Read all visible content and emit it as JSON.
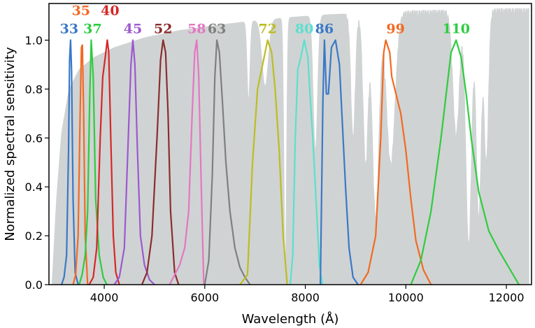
{
  "chart_data": {
    "type": "line",
    "title": "",
    "xlabel": "Wavelength  (Å)",
    "ylabel": "Normalized spectral sensitivity",
    "xlim": [
      2900,
      12500
    ],
    "ylim": [
      0,
      1.15
    ],
    "x_ticks": [
      4000,
      6000,
      8000,
      10000,
      12000
    ],
    "y_ticks": [
      0.0,
      0.2,
      0.4,
      0.6,
      0.8,
      1.0
    ],
    "x_tick_labels": [
      "4000",
      "6000",
      "8000",
      "10000",
      "12000"
    ],
    "y_tick_labels": [
      "0.0",
      "0.2",
      "0.4",
      "0.6",
      "0.8",
      "1.0"
    ],
    "grid": false,
    "atmosphere": {
      "color": "#d0d3d3",
      "smooth_x": [
        2960,
        3050,
        3150,
        3300,
        3500,
        3800,
        4200,
        4800,
        5500,
        6200,
        7000,
        7800,
        8500,
        9200,
        10000,
        11000,
        12000,
        12450
      ],
      "smooth_y": [
        0.0,
        0.35,
        0.62,
        0.8,
        0.88,
        0.93,
        0.97,
        1.01,
        1.04,
        1.06,
        1.08,
        1.095,
        1.105,
        1.11,
        1.12,
        1.125,
        1.13,
        1.13
      ],
      "bands": [
        {
          "center": 6870,
          "depth": 0.3,
          "width": 40
        },
        {
          "center": 7200,
          "depth": 0.25,
          "width": 90
        },
        {
          "center": 7600,
          "depth": 0.95,
          "width": 35
        },
        {
          "center": 8200,
          "depth": 0.5,
          "width": 60
        },
        {
          "center": 8950,
          "depth": 0.45,
          "width": 60
        },
        {
          "center": 9200,
          "depth": 0.55,
          "width": 70
        },
        {
          "center": 9400,
          "depth": 0.75,
          "width": 90
        },
        {
          "center": 9700,
          "depth": 0.55,
          "width": 120
        },
        {
          "center": 11000,
          "depth": 0.45,
          "width": 90
        },
        {
          "center": 11250,
          "depth": 0.85,
          "width": 80
        },
        {
          "center": 11450,
          "depth": 0.75,
          "width": 70
        },
        {
          "center": 11600,
          "depth": 0.55,
          "width": 60
        }
      ]
    },
    "series": [
      {
        "label": "33",
        "color": "#3a78c7",
        "x": [
          3150,
          3200,
          3250,
          3290,
          3310,
          3330,
          3350,
          3380,
          3420,
          3480
        ],
        "y": [
          0,
          0.03,
          0.12,
          0.55,
          0.92,
          1.0,
          0.88,
          0.35,
          0.05,
          0
        ]
      },
      {
        "label": "35",
        "color": "#f26a22",
        "x": [
          3380,
          3430,
          3480,
          3520,
          3545,
          3565,
          3590,
          3620,
          3670
        ],
        "y": [
          0,
          0.04,
          0.2,
          0.7,
          0.97,
          0.98,
          0.7,
          0.2,
          0
        ]
      },
      {
        "label": "37",
        "color": "#2ecc40",
        "x": [
          3500,
          3560,
          3620,
          3670,
          3710,
          3740,
          3780,
          3830,
          3900,
          3980,
          4050
        ],
        "y": [
          0,
          0.04,
          0.12,
          0.3,
          0.75,
          1.0,
          0.85,
          0.35,
          0.12,
          0.03,
          0
        ]
      },
      {
        "label": "40",
        "color": "#d62728",
        "x": [
          3700,
          3780,
          3850,
          3920,
          3970,
          4020,
          4060,
          4090,
          4130,
          4180,
          4230,
          4300
        ],
        "y": [
          0,
          0.03,
          0.15,
          0.6,
          0.85,
          0.93,
          1.0,
          0.95,
          0.6,
          0.2,
          0.05,
          0
        ]
      },
      {
        "label": "45",
        "color": "#9b59d0",
        "x": [
          4200,
          4300,
          4400,
          4470,
          4530,
          4570,
          4610,
          4660,
          4720,
          4800,
          4900,
          5000
        ],
        "y": [
          0,
          0.03,
          0.15,
          0.55,
          0.9,
          1.0,
          0.9,
          0.55,
          0.2,
          0.08,
          0.02,
          0
        ]
      },
      {
        "label": "52",
        "color": "#8b2d2d",
        "x": [
          4750,
          4850,
          4950,
          5050,
          5120,
          5170,
          5220,
          5270,
          5320,
          5400,
          5480
        ],
        "y": [
          0,
          0.05,
          0.2,
          0.6,
          0.92,
          1.0,
          0.95,
          0.7,
          0.3,
          0.05,
          0
        ]
      },
      {
        "label": "58",
        "color": "#e377c2",
        "x": [
          5300,
          5400,
          5500,
          5600,
          5680,
          5750,
          5800,
          5840,
          5880,
          5930,
          5980
        ],
        "y": [
          0,
          0.04,
          0.08,
          0.15,
          0.3,
          0.7,
          0.95,
          1.0,
          0.85,
          0.4,
          0
        ]
      },
      {
        "label": "63",
        "color": "#7f7f7f",
        "x": [
          6000,
          6080,
          6150,
          6200,
          6240,
          6290,
          6350,
          6420,
          6500,
          6600,
          6700,
          6800,
          6900
        ],
        "y": [
          0,
          0.1,
          0.45,
          0.85,
          1.0,
          0.95,
          0.75,
          0.5,
          0.3,
          0.15,
          0.07,
          0.03,
          0
        ]
      },
      {
        "label": "72",
        "color": "#bcbd22",
        "x": [
          6700,
          6850,
          6950,
          7050,
          7150,
          7250,
          7330,
          7400,
          7480,
          7560,
          7640
        ],
        "y": [
          0,
          0.04,
          0.5,
          0.8,
          0.9,
          1.0,
          0.95,
          0.8,
          0.55,
          0.2,
          0
        ]
      },
      {
        "label": "80",
        "color": "#5be0d0",
        "x": [
          7700,
          7750,
          7800,
          7850,
          7900,
          7980,
          8050,
          8100,
          8150,
          8200,
          8280,
          8340
        ],
        "y": [
          0,
          0.12,
          0.6,
          0.88,
          0.92,
          1.0,
          0.93,
          0.75,
          0.6,
          0.4,
          0.08,
          0
        ]
      },
      {
        "label": "86",
        "color": "#3a78c7",
        "x": [
          8300,
          8350,
          8380,
          8420,
          8460,
          8520,
          8600,
          8680,
          8740,
          8800,
          8870,
          8950,
          9050
        ],
        "y": [
          0,
          0.75,
          1.0,
          0.78,
          0.78,
          0.97,
          1.0,
          0.9,
          0.65,
          0.4,
          0.15,
          0.03,
          0
        ]
      },
      {
        "label": "99",
        "color": "#f26a22",
        "x": [
          9100,
          9250,
          9400,
          9500,
          9560,
          9600,
          9680,
          9720,
          9780,
          9900,
          10000,
          10100,
          10200,
          10350,
          10500
        ],
        "y": [
          0,
          0.05,
          0.2,
          0.6,
          0.95,
          1.0,
          0.95,
          0.85,
          0.8,
          0.7,
          0.55,
          0.35,
          0.18,
          0.06,
          0
        ]
      },
      {
        "label": "110",
        "color": "#2ecc40",
        "x": [
          10100,
          10300,
          10500,
          10700,
          10900,
          11000,
          11100,
          11200,
          11300,
          11450,
          11650,
          11850,
          12050,
          12250
        ],
        "y": [
          0,
          0.1,
          0.3,
          0.6,
          0.95,
          1.0,
          0.93,
          0.78,
          0.6,
          0.38,
          0.22,
          0.14,
          0.07,
          0
        ]
      }
    ]
  }
}
